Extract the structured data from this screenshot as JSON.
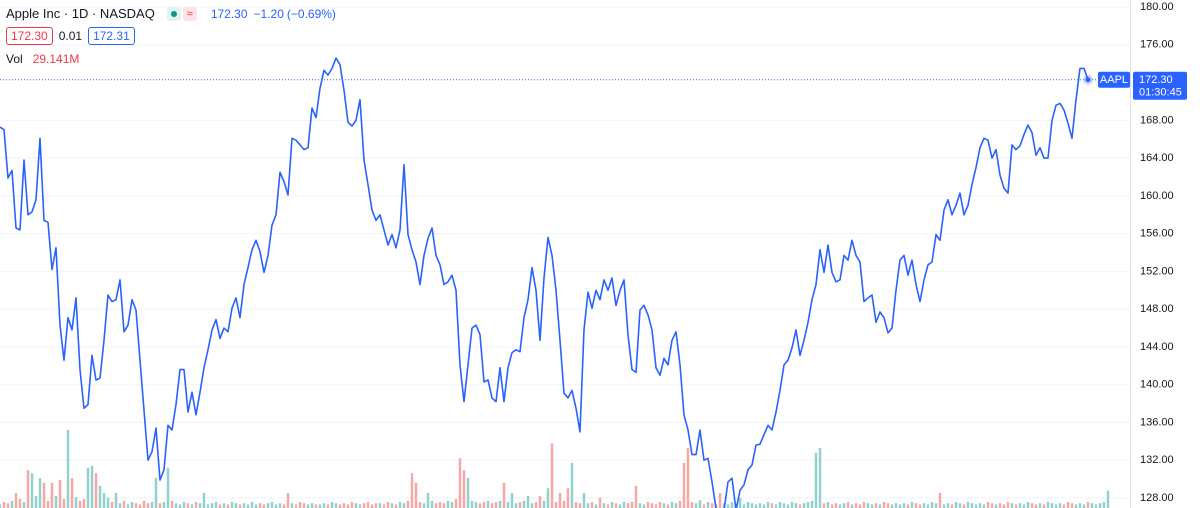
{
  "header": {
    "title": "Apple Inc · 1D · NASDAQ",
    "last": "172.30",
    "change": "−1.20",
    "change_pct": "(−0.69%)",
    "bid": "172.30",
    "spread": "0.01",
    "ask": "172.31",
    "vol_label": "Vol",
    "vol": "29.141M"
  },
  "chart_data": {
    "type": "line",
    "series": [
      {
        "name": "AAPL",
        "color": "#2962ff",
        "values": [
          167.3,
          167.0,
          161.9,
          162.7,
          156.6,
          156.4,
          163.8,
          158.0,
          158.3,
          159.6,
          166.1,
          157.4,
          157.2,
          152.2,
          154.5,
          146.3,
          142.6,
          147.1,
          145.8,
          149.2,
          141.6,
          137.5,
          137.9,
          143.1,
          140.5,
          140.7,
          144.7,
          149.5,
          148.8,
          149.0,
          151.1,
          145.6,
          146.3,
          149.0,
          147.9,
          142.6,
          137.3,
          132.0,
          132.9,
          135.4,
          129.9,
          131.0,
          135.7,
          135.2,
          137.9,
          141.6,
          141.6,
          137.1,
          139.2,
          136.8,
          139.2,
          141.8,
          143.7,
          145.8,
          146.9,
          144.9,
          146.0,
          145.6,
          148.1,
          149.2,
          147.1,
          150.6,
          152.4,
          154.3,
          155.3,
          154.1,
          151.9,
          153.7,
          156.9,
          158.0,
          162.5,
          161.5,
          160.1,
          166.1,
          165.9,
          165.4,
          164.9,
          165.1,
          169.3,
          168.3,
          171.4,
          173.3,
          172.8,
          173.5,
          174.6,
          173.9,
          171.2,
          167.8,
          167.4,
          168.0,
          170.2,
          163.8,
          161.2,
          158.5,
          157.4,
          158.0,
          156.4,
          154.8,
          155.9,
          154.5,
          156.4,
          163.3,
          155.9,
          154.3,
          153.0,
          150.6,
          153.7,
          155.5,
          156.6,
          153.7,
          152.7,
          150.6,
          150.9,
          151.6,
          150.0,
          142.1,
          138.2,
          142.1,
          146.0,
          146.3,
          145.3,
          140.3,
          140.5,
          138.6,
          138.2,
          141.8,
          138.2,
          141.8,
          143.4,
          143.7,
          143.5,
          147.1,
          149.0,
          152.4,
          150.0,
          144.7,
          151.3,
          155.6,
          153.7,
          150.0,
          144.7,
          139.1,
          138.6,
          139.4,
          137.5,
          135.0,
          145.8,
          149.8,
          148.1,
          150.0,
          149.0,
          151.1,
          150.0,
          151.3,
          148.4,
          150.0,
          151.1,
          145.3,
          141.6,
          141.3,
          147.9,
          148.4,
          147.4,
          145.8,
          141.8,
          141.0,
          142.8,
          142.1,
          144.7,
          145.6,
          142.1,
          136.8,
          135.2,
          132.6,
          132.6,
          135.2,
          132.0,
          132.2,
          129.7,
          126.9,
          126.7,
          126.7,
          129.7,
          130.1,
          126.7,
          128.8,
          129.4,
          131.0,
          131.5,
          133.6,
          133.7,
          134.7,
          135.7,
          135.2,
          137.1,
          139.4,
          142.1,
          142.6,
          143.9,
          145.8,
          143.1,
          144.7,
          146.6,
          149.0,
          150.6,
          154.3,
          151.9,
          154.8,
          151.9,
          150.9,
          151.1,
          153.7,
          153.2,
          155.3,
          153.7,
          153.0,
          148.8,
          149.2,
          149.5,
          146.6,
          147.7,
          147.1,
          145.5,
          146.0,
          150.0,
          153.2,
          153.7,
          151.6,
          153.2,
          150.6,
          148.8,
          151.1,
          152.7,
          153.0,
          155.9,
          155.3,
          158.5,
          159.6,
          158.0,
          159.0,
          160.3,
          158.0,
          159.0,
          161.2,
          163.0,
          165.1,
          166.1,
          165.9,
          164.0,
          164.9,
          162.2,
          160.8,
          160.3,
          165.4,
          164.9,
          165.3,
          166.5,
          167.5,
          166.7,
          164.3,
          165.1,
          164.0,
          164.0,
          168.0,
          169.6,
          169.8,
          169.1,
          167.7,
          166.1,
          170.2,
          173.5,
          173.5,
          172.3
        ]
      }
    ],
    "volume": {
      "up_color": "#92d2cc",
      "down_color": "#f7a8a6",
      "values": [
        6,
        10,
        8,
        12,
        25,
        15,
        10,
        63,
        58,
        20,
        50,
        42,
        12,
        42,
        20,
        47,
        15,
        130,
        50,
        18,
        12,
        15,
        67,
        70,
        58,
        37,
        25,
        17,
        10,
        25,
        8,
        12,
        6,
        10,
        8,
        6,
        12,
        8,
        10,
        50,
        8,
        10,
        67,
        12,
        8,
        6,
        10,
        8,
        6,
        10,
        8,
        25,
        6,
        8,
        10,
        6,
        8,
        6,
        10,
        8,
        6,
        8,
        6,
        10,
        6,
        8,
        6,
        8,
        10,
        6,
        8,
        6,
        25,
        8,
        6,
        10,
        8,
        6,
        8,
        6,
        6,
        8,
        6,
        10,
        8,
        6,
        8,
        6,
        10,
        8,
        6,
        8,
        10,
        6,
        8,
        8,
        6,
        10,
        8,
        6,
        10,
        8,
        12,
        58,
        42,
        10,
        8,
        25,
        12,
        8,
        10,
        8,
        12,
        10,
        15,
        83,
        63,
        50,
        12,
        10,
        8,
        10,
        12,
        8,
        10,
        12,
        42,
        10,
        25,
        8,
        10,
        12,
        20,
        8,
        10,
        20,
        12,
        33,
        108,
        10,
        25,
        12,
        33,
        75,
        10,
        8,
        25,
        8,
        10,
        6,
        17,
        8,
        6,
        10,
        8,
        6,
        10,
        8,
        10,
        37,
        8,
        6,
        10,
        8,
        6,
        10,
        8,
        6,
        10,
        8,
        12,
        75,
        100,
        10,
        8,
        13,
        6,
        10,
        8,
        6,
        25,
        8,
        6,
        10,
        8,
        17,
        6,
        10,
        8,
        6,
        8,
        6,
        10,
        8,
        6,
        10,
        8,
        6,
        10,
        8,
        6,
        8,
        10,
        12,
        92,
        100,
        8,
        10,
        6,
        8,
        6,
        8,
        10,
        6,
        8,
        6,
        10,
        8,
        6,
        8,
        6,
        10,
        8,
        6,
        8,
        6,
        8,
        6,
        10,
        8,
        6,
        8,
        6,
        10,
        8,
        25,
        6,
        8,
        6,
        10,
        8,
        6,
        10,
        8,
        6,
        8,
        6,
        10,
        8,
        6,
        8,
        6,
        10,
        8,
        6,
        8,
        6,
        10,
        8,
        6,
        8,
        6,
        10,
        8,
        6,
        8,
        6,
        10,
        8,
        6,
        8,
        6,
        10,
        8,
        6,
        8,
        10,
        29.141
      ]
    },
    "last_price": {
      "value": 172.3,
      "label": "172.30"
    },
    "countdown": "01:30:45",
    "ylim": [
      126.94,
      180.75
    ],
    "yticks": [
      {
        "value": 180,
        "label": "180.00"
      },
      {
        "value": 176,
        "label": "176.00"
      },
      {
        "value": 168,
        "label": "168.00"
      },
      {
        "value": 164,
        "label": "164.00"
      },
      {
        "value": 160,
        "label": "160.00"
      },
      {
        "value": 156,
        "label": "156.00"
      },
      {
        "value": 152,
        "label": "152.00"
      },
      {
        "value": 148,
        "label": "148.00"
      },
      {
        "value": 144,
        "label": "144.00"
      },
      {
        "value": 140,
        "label": "140.00"
      },
      {
        "value": 136,
        "label": "136.00"
      },
      {
        "value": 132,
        "label": "132.00"
      },
      {
        "value": 128,
        "label": "128.00"
      }
    ],
    "grid": true
  }
}
